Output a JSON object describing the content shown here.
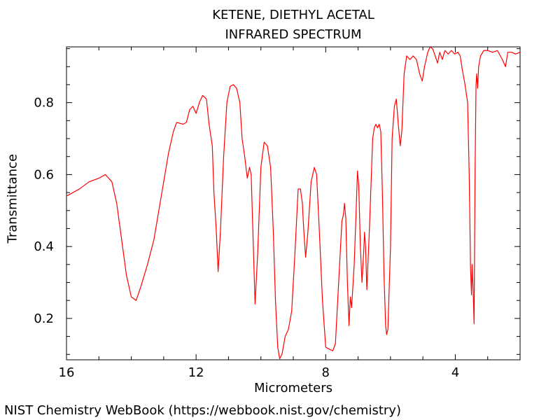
{
  "chart_data": {
    "type": "line",
    "title": "KETENE, DIETHYL ACETAL",
    "subtitle": "INFRARED SPECTRUM",
    "xlabel": "Micrometers",
    "ylabel": "Transmittance",
    "xlim": [
      16,
      2
    ],
    "ylim": [
      0.085,
      0.955
    ],
    "x_ticks": [
      16,
      12,
      8,
      4
    ],
    "y_ticks": [
      0.2,
      0.4,
      0.6,
      0.8
    ],
    "grid": false,
    "series": [
      {
        "color": "#ff0000",
        "points": [
          [
            16.0,
            0.54
          ],
          [
            15.6,
            0.56
          ],
          [
            15.3,
            0.58
          ],
          [
            15.0,
            0.59
          ],
          [
            14.8,
            0.6
          ],
          [
            14.6,
            0.58
          ],
          [
            14.45,
            0.52
          ],
          [
            14.3,
            0.42
          ],
          [
            14.15,
            0.32
          ],
          [
            14.0,
            0.26
          ],
          [
            13.85,
            0.25
          ],
          [
            13.7,
            0.29
          ],
          [
            13.5,
            0.35
          ],
          [
            13.3,
            0.42
          ],
          [
            13.15,
            0.5
          ],
          [
            13.0,
            0.58
          ],
          [
            12.85,
            0.66
          ],
          [
            12.7,
            0.72
          ],
          [
            12.6,
            0.745
          ],
          [
            12.4,
            0.74
          ],
          [
            12.3,
            0.745
          ],
          [
            12.2,
            0.78
          ],
          [
            12.1,
            0.79
          ],
          [
            12.0,
            0.77
          ],
          [
            11.9,
            0.8
          ],
          [
            11.8,
            0.82
          ],
          [
            11.68,
            0.81
          ],
          [
            11.6,
            0.74
          ],
          [
            11.5,
            0.68
          ],
          [
            11.45,
            0.55
          ],
          [
            11.38,
            0.45
          ],
          [
            11.32,
            0.33
          ],
          [
            11.25,
            0.44
          ],
          [
            11.15,
            0.65
          ],
          [
            11.05,
            0.8
          ],
          [
            10.95,
            0.845
          ],
          [
            10.85,
            0.85
          ],
          [
            10.75,
            0.84
          ],
          [
            10.65,
            0.8
          ],
          [
            10.58,
            0.7
          ],
          [
            10.5,
            0.65
          ],
          [
            10.42,
            0.59
          ],
          [
            10.35,
            0.62
          ],
          [
            10.3,
            0.6
          ],
          [
            10.25,
            0.45
          ],
          [
            10.18,
            0.24
          ],
          [
            10.1,
            0.38
          ],
          [
            10.0,
            0.62
          ],
          [
            9.9,
            0.69
          ],
          [
            9.8,
            0.68
          ],
          [
            9.7,
            0.62
          ],
          [
            9.62,
            0.45
          ],
          [
            9.55,
            0.25
          ],
          [
            9.48,
            0.12
          ],
          [
            9.42,
            0.088
          ],
          [
            9.35,
            0.1
          ],
          [
            9.25,
            0.15
          ],
          [
            9.15,
            0.17
          ],
          [
            9.05,
            0.22
          ],
          [
            8.95,
            0.38
          ],
          [
            8.85,
            0.56
          ],
          [
            8.78,
            0.56
          ],
          [
            8.72,
            0.52
          ],
          [
            8.68,
            0.45
          ],
          [
            8.62,
            0.37
          ],
          [
            8.55,
            0.44
          ],
          [
            8.45,
            0.58
          ],
          [
            8.35,
            0.62
          ],
          [
            8.28,
            0.6
          ],
          [
            8.2,
            0.45
          ],
          [
            8.1,
            0.25
          ],
          [
            8.0,
            0.12
          ],
          [
            7.9,
            0.115
          ],
          [
            7.78,
            0.11
          ],
          [
            7.7,
            0.13
          ],
          [
            7.6,
            0.3
          ],
          [
            7.5,
            0.47
          ],
          [
            7.45,
            0.49
          ],
          [
            7.42,
            0.52
          ],
          [
            7.38,
            0.48
          ],
          [
            7.33,
            0.3
          ],
          [
            7.28,
            0.18
          ],
          [
            7.24,
            0.26
          ],
          [
            7.2,
            0.23
          ],
          [
            7.12,
            0.35
          ],
          [
            7.06,
            0.5
          ],
          [
            7.02,
            0.61
          ],
          [
            6.98,
            0.57
          ],
          [
            6.93,
            0.4
          ],
          [
            6.88,
            0.3
          ],
          [
            6.83,
            0.38
          ],
          [
            6.8,
            0.44
          ],
          [
            6.77,
            0.4
          ],
          [
            6.73,
            0.28
          ],
          [
            6.65,
            0.45
          ],
          [
            6.55,
            0.7
          ],
          [
            6.5,
            0.73
          ],
          [
            6.45,
            0.74
          ],
          [
            6.4,
            0.73
          ],
          [
            6.35,
            0.74
          ],
          [
            6.3,
            0.72
          ],
          [
            6.25,
            0.55
          ],
          [
            6.2,
            0.32
          ],
          [
            6.15,
            0.18
          ],
          [
            6.12,
            0.155
          ],
          [
            6.08,
            0.17
          ],
          [
            6.0,
            0.4
          ],
          [
            5.95,
            0.7
          ],
          [
            5.88,
            0.79
          ],
          [
            5.82,
            0.81
          ],
          [
            5.76,
            0.74
          ],
          [
            5.7,
            0.68
          ],
          [
            5.65,
            0.72
          ],
          [
            5.58,
            0.88
          ],
          [
            5.5,
            0.93
          ],
          [
            5.4,
            0.92
          ],
          [
            5.3,
            0.93
          ],
          [
            5.2,
            0.92
          ],
          [
            5.1,
            0.88
          ],
          [
            5.02,
            0.86
          ],
          [
            4.95,
            0.9
          ],
          [
            4.85,
            0.94
          ],
          [
            4.78,
            0.955
          ],
          [
            4.7,
            0.95
          ],
          [
            4.62,
            0.93
          ],
          [
            4.55,
            0.91
          ],
          [
            4.48,
            0.94
          ],
          [
            4.4,
            0.92
          ],
          [
            4.32,
            0.945
          ],
          [
            4.22,
            0.935
          ],
          [
            4.12,
            0.945
          ],
          [
            4.02,
            0.935
          ],
          [
            3.92,
            0.94
          ],
          [
            3.85,
            0.93
          ],
          [
            3.78,
            0.89
          ],
          [
            3.7,
            0.85
          ],
          [
            3.62,
            0.8
          ],
          [
            3.57,
            0.6
          ],
          [
            3.53,
            0.34
          ],
          [
            3.5,
            0.265
          ],
          [
            3.48,
            0.35
          ],
          [
            3.45,
            0.28
          ],
          [
            3.42,
            0.185
          ],
          [
            3.39,
            0.6
          ],
          [
            3.36,
            0.85
          ],
          [
            3.34,
            0.88
          ],
          [
            3.31,
            0.84
          ],
          [
            3.28,
            0.9
          ],
          [
            3.22,
            0.93
          ],
          [
            3.12,
            0.945
          ],
          [
            3.0,
            0.945
          ],
          [
            2.85,
            0.94
          ],
          [
            2.7,
            0.945
          ],
          [
            2.55,
            0.92
          ],
          [
            2.45,
            0.9
          ],
          [
            2.38,
            0.94
          ],
          [
            2.25,
            0.94
          ],
          [
            2.15,
            0.935
          ],
          [
            2.0,
            0.94
          ]
        ]
      }
    ]
  },
  "footer": "NIST Chemistry WebBook (https://webbook.nist.gov/chemistry)"
}
